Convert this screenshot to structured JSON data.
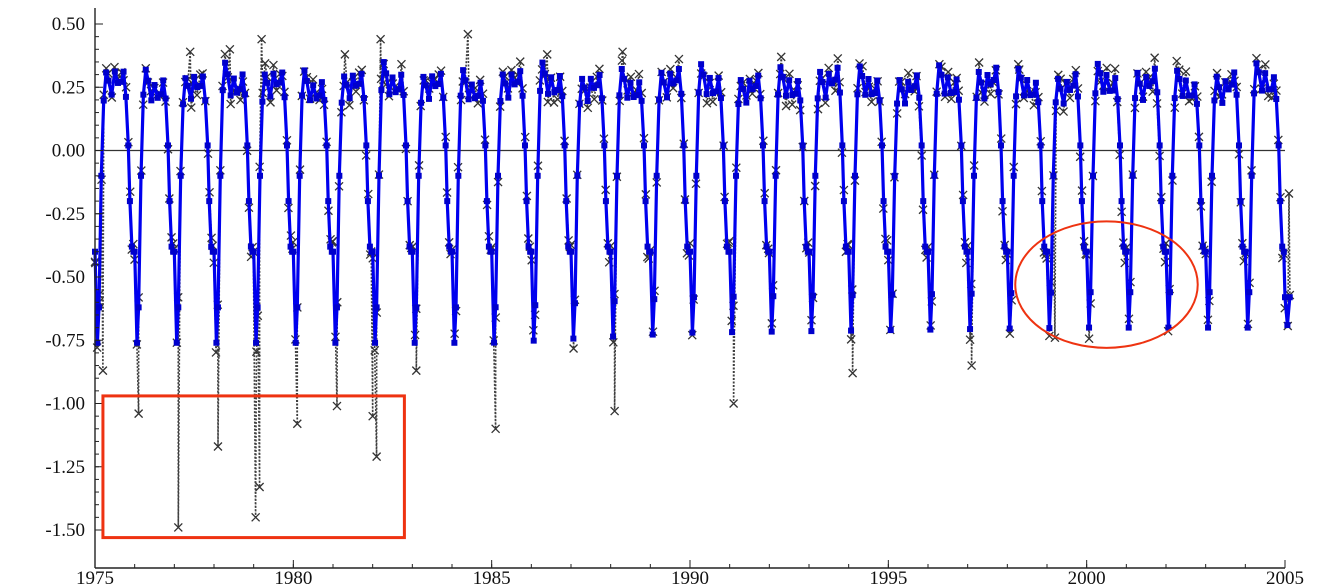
{
  "chart_data": {
    "type": "line",
    "title": "",
    "xlabel": "",
    "ylabel": "",
    "xlim": [
      1975,
      2005
    ],
    "ylim": [
      -1.55,
      0.57
    ],
    "x_ticks": [
      1975,
      1980,
      1985,
      1990,
      1995,
      2000,
      2005
    ],
    "y_ticks": [
      0.5,
      0.25,
      0.0,
      -0.25,
      -0.5,
      -0.75,
      -1.0,
      -1.25,
      -1.5
    ],
    "x_tick_labels": [
      "1975",
      "1980",
      "1985",
      "1990",
      "1995",
      "2000",
      "2005"
    ],
    "y_tick_labels": [
      "0.50",
      "0.25",
      "0.00",
      "-0.25",
      "-0.50",
      "-0.75",
      "-1.00",
      "-1.25",
      "-1.50"
    ],
    "grid": false,
    "zero_line": true,
    "colors": {
      "model": "#0000ee",
      "observed": "#404040",
      "annotation": "#ee3311"
    },
    "series": [
      {
        "style": "blue line with square markers, smooth annual cycle",
        "period_years": 1.0,
        "cycle_shape": [
          [
            0.0,
            -0.4
          ],
          [
            0.06,
            -0.72
          ],
          [
            0.1,
            -0.58
          ],
          [
            0.16,
            -0.1
          ],
          [
            0.22,
            0.22
          ],
          [
            0.28,
            0.33
          ],
          [
            0.34,
            0.29
          ],
          [
            0.42,
            0.22
          ],
          [
            0.5,
            0.3
          ],
          [
            0.58,
            0.25
          ],
          [
            0.66,
            0.26
          ],
          [
            0.72,
            0.31
          ],
          [
            0.78,
            0.22
          ],
          [
            0.84,
            0.02
          ],
          [
            0.88,
            -0.2
          ],
          [
            0.93,
            -0.38
          ],
          [
            0.97,
            -0.4
          ]
        ],
        "trough_depth_by_year": [
          [
            1975,
            -0.76
          ],
          [
            1980,
            -0.76
          ],
          [
            1985,
            -0.76
          ],
          [
            1990,
            -0.72
          ],
          [
            1995,
            -0.71
          ],
          [
            2000,
            -0.7
          ],
          [
            2005,
            -0.7
          ]
        ]
      },
      {
        "style": "dark gray dotted line with x markers, same annual cycle with extra noise",
        "period_years": 1.0,
        "deep_troughs": [
          [
            1975.2,
            -0.87
          ],
          [
            1976.1,
            -1.04
          ],
          [
            1977.1,
            -1.49
          ],
          [
            1978.1,
            -1.17
          ],
          [
            1979.05,
            -1.45
          ],
          [
            1979.15,
            -1.33
          ],
          [
            1980.1,
            -1.08
          ],
          [
            1981.1,
            -1.01
          ],
          [
            1982.0,
            -1.05
          ],
          [
            1982.1,
            -1.21
          ],
          [
            1983.1,
            -0.87
          ],
          [
            1985.1,
            -1.1
          ],
          [
            1988.1,
            -1.03
          ],
          [
            1991.1,
            -1.0
          ],
          [
            1994.1,
            -0.88
          ],
          [
            1997.1,
            -0.85
          ],
          [
            1999.2,
            -0.74
          ]
        ],
        "high_peaks": [
          [
            1977.4,
            0.39
          ],
          [
            1978.4,
            0.4
          ],
          [
            1979.2,
            0.44
          ],
          [
            1981.3,
            0.38
          ],
          [
            1982.2,
            0.44
          ],
          [
            1984.4,
            0.46
          ],
          [
            1986.4,
            0.38
          ],
          [
            1988.3,
            0.39
          ],
          [
            1992.3,
            0.37
          ],
          [
            1998.3,
            0.32
          ]
        ]
      }
    ],
    "annotations": [
      {
        "type": "rectangle",
        "x": [
          1975.2,
          1982.8
        ],
        "y": [
          -1.53,
          -0.97
        ]
      },
      {
        "type": "ellipse",
        "cx": 2000.5,
        "cy": -0.53,
        "rx_years": 2.3,
        "ry": 0.25
      }
    ]
  }
}
